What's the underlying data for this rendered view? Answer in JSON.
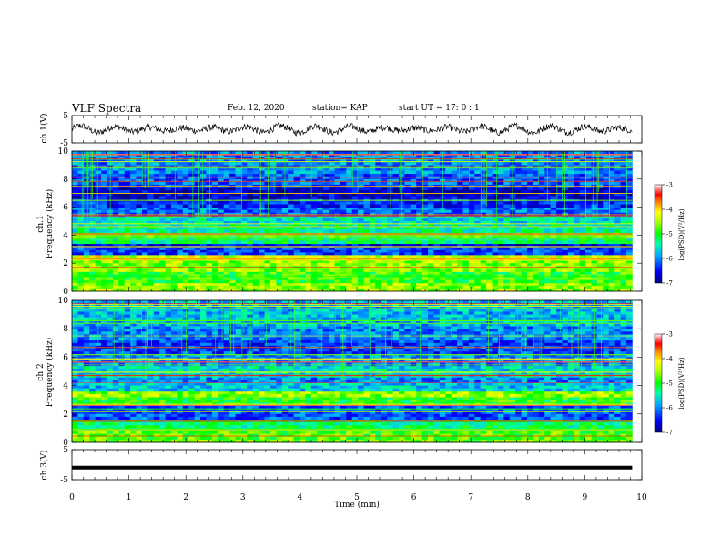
{
  "header": {
    "title": "VLF Spectra",
    "date": "Feb. 12, 2020",
    "station": "station= KAP",
    "start": "start  UT =   17: 0  : 1"
  },
  "chart_data": [
    {
      "type": "line",
      "panel": "ch1-waveform",
      "ylabel": "ch.1(V)",
      "ylim": [
        -5,
        5
      ],
      "yticks": [
        "5",
        "-5"
      ],
      "xlim": [
        0,
        10
      ],
      "series_color": "#000000",
      "note_values": "noisy waveform oscillating roughly between -2 and 2 V across 0 to 9.83 min"
    },
    {
      "type": "heatmap",
      "panel": "ch1-spectrogram",
      "ylabel": "ch.1 Frequency (kHz)",
      "ylim": [
        0,
        10
      ],
      "yticks": [
        "0",
        "2",
        "4",
        "6",
        "8",
        "10"
      ],
      "xlim": [
        0,
        10
      ],
      "data_x_end": 9.83,
      "colorbar": {
        "label": "log(PSD)(V²/Hz)",
        "range": [
          -7,
          -3
        ],
        "ticks": [
          "-3",
          "-4",
          "-5",
          "-6",
          "-7"
        ]
      },
      "bands_khz_level": [
        [
          0.0,
          0.6,
          -4.6
        ],
        [
          0.6,
          1.4,
          -4.9
        ],
        [
          1.4,
          2.2,
          -4.6
        ],
        [
          2.2,
          2.6,
          -4.3
        ],
        [
          2.6,
          3.1,
          -6.3
        ],
        [
          3.1,
          3.4,
          -6.6
        ],
        [
          3.4,
          3.8,
          -5.3
        ],
        [
          3.8,
          4.2,
          -5.0
        ],
        [
          4.2,
          4.8,
          -5.4
        ],
        [
          4.8,
          5.4,
          -5.6
        ],
        [
          5.4,
          6.0,
          -6.1
        ],
        [
          6.0,
          6.6,
          -6.4
        ],
        [
          6.6,
          7.4,
          -6.7
        ],
        [
          7.4,
          8.4,
          -6.2
        ],
        [
          8.4,
          10.0,
          -6.0
        ]
      ]
    },
    {
      "type": "heatmap",
      "panel": "ch2-spectrogram",
      "ylabel": "ch.2 Frequency (kHz)",
      "ylim": [
        0,
        10
      ],
      "yticks": [
        "0",
        "2",
        "4",
        "6",
        "8",
        "10"
      ],
      "xlim": [
        0,
        10
      ],
      "data_x_end": 9.83,
      "colorbar": {
        "label": "log(PSD)(V²/Hz)",
        "range": [
          -7,
          -3
        ],
        "ticks": [
          "-3",
          "-4",
          "-5",
          "-6",
          "-7"
        ]
      },
      "bands_khz_level": [
        [
          0.0,
          0.8,
          -4.8
        ],
        [
          0.8,
          1.6,
          -5.2
        ],
        [
          1.6,
          2.6,
          -6.2
        ],
        [
          2.6,
          3.2,
          -5.0
        ],
        [
          3.2,
          3.6,
          -4.6
        ],
        [
          3.6,
          4.2,
          -5.7
        ],
        [
          4.2,
          4.6,
          -6.0
        ],
        [
          4.6,
          5.4,
          -5.6
        ],
        [
          5.4,
          6.2,
          -6.0
        ],
        [
          6.2,
          7.2,
          -6.3
        ],
        [
          7.2,
          8.2,
          -6.0
        ],
        [
          8.2,
          10.0,
          -5.8
        ]
      ]
    },
    {
      "type": "line",
      "panel": "ch3-waveform",
      "ylabel": "ch.3(V)",
      "ylim": [
        -5,
        5
      ],
      "yticks": [
        "5",
        "-5"
      ],
      "xlim": [
        0,
        10
      ],
      "flat_value": -1,
      "data_x_end": 9.83
    }
  ],
  "xaxis": {
    "label": "Time  (min)",
    "ticks": [
      "0",
      "1",
      "2",
      "3",
      "4",
      "5",
      "6",
      "7",
      "8",
      "9",
      "10"
    ],
    "range": [
      0,
      10
    ]
  }
}
